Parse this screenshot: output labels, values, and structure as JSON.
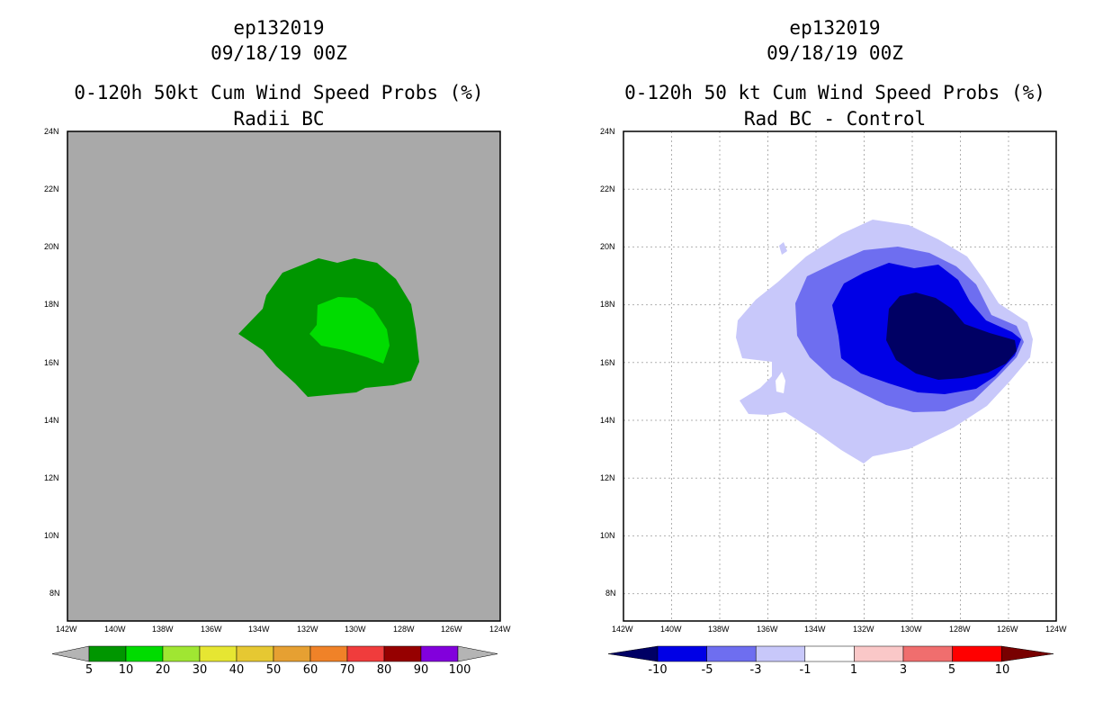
{
  "left_panel": {
    "storm_id": "ep132019",
    "datetime": "09/18/19 00Z",
    "title": "0-120h 50kt Cum Wind Speed Probs (%)",
    "subtitle": "Radii BC",
    "background_color": "#a9a9a9",
    "colorbar": {
      "labels": [
        "5",
        "10",
        "20",
        "30",
        "40",
        "50",
        "60",
        "70",
        "80",
        "90",
        "100"
      ],
      "colors": [
        "#009600",
        "#00dc00",
        "#a0e632",
        "#e6e632",
        "#e6c832",
        "#e6a032",
        "#f08228",
        "#f03c3c",
        "#960000",
        "#8200dc"
      ],
      "arrow_color": "#b4b4b4"
    }
  },
  "right_panel": {
    "storm_id": "ep132019",
    "datetime": "09/18/19 00Z",
    "title": "0-120h 50 kt Cum Wind Speed Probs (%)",
    "subtitle": "Rad BC - Control",
    "colorbar": {
      "labels": [
        "-10",
        "-5",
        "-3",
        "-1",
        "1",
        "3",
        "5",
        "10"
      ],
      "colors": [
        "#0000e6",
        "#6e6ef0",
        "#c8c8fa",
        "#ffffff",
        "#fac8c8",
        "#f06e6e",
        "#ff0000"
      ],
      "low_arrow_color": "#000064",
      "high_arrow_color": "#780000"
    }
  },
  "axes": {
    "lat_labels": [
      "24N",
      "22N",
      "20N",
      "18N",
      "16N",
      "14N",
      "12N",
      "10N",
      "8N"
    ],
    "lon_labels": [
      "142W",
      "140W",
      "138W",
      "136W",
      "134W",
      "132W",
      "130W",
      "128W",
      "126W",
      "124W"
    ]
  }
}
